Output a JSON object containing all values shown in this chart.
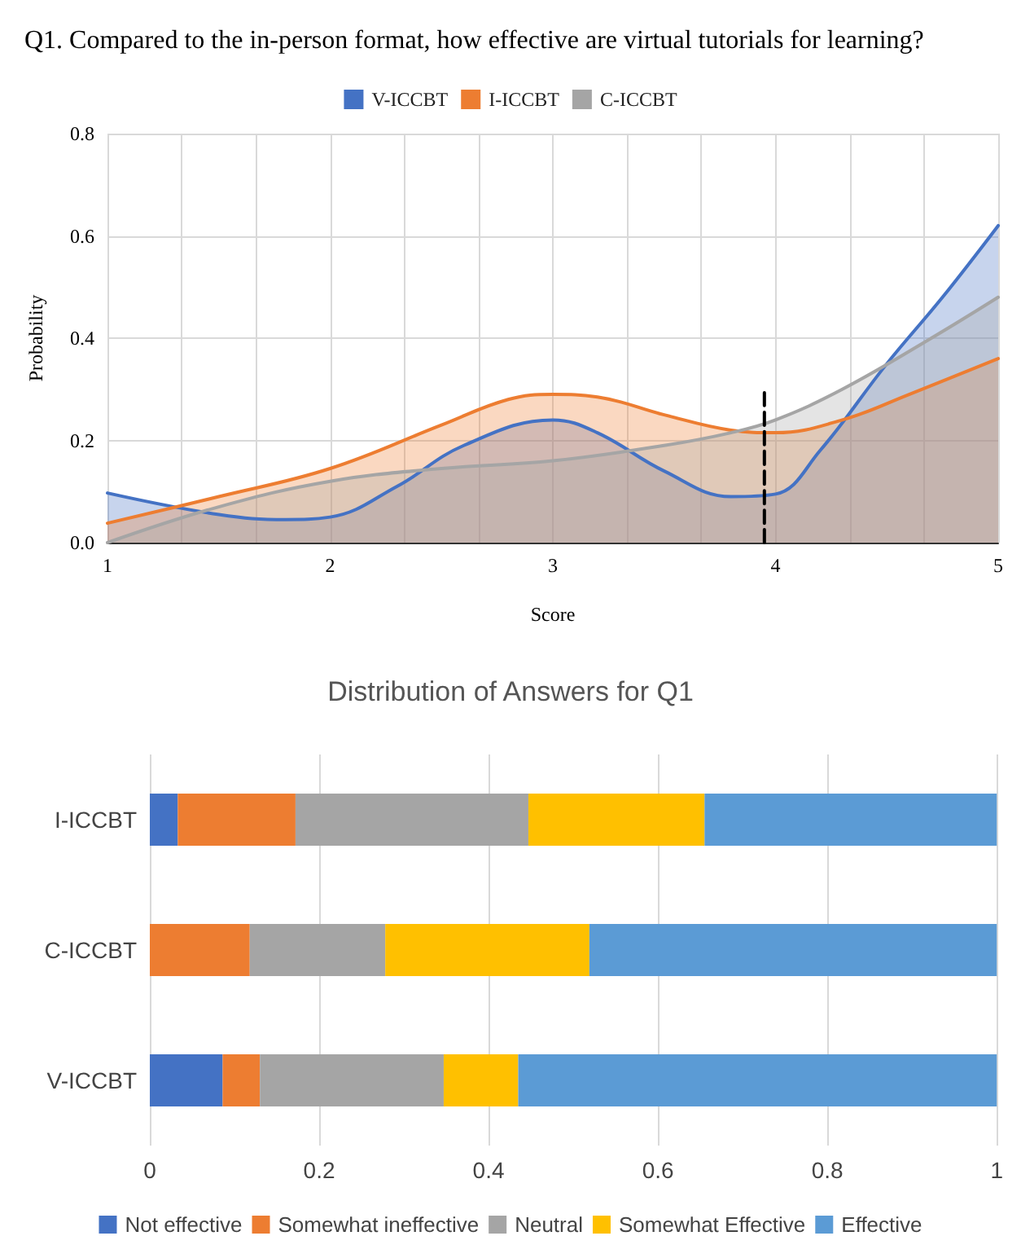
{
  "chart_data": [
    {
      "type": "area",
      "title": "Q1. Compared to the in-person format, how effective are virtual tutorials for learning?",
      "xlabel": "Score",
      "ylabel": "Probability",
      "legend": "top",
      "grid": true,
      "xlim": [
        1,
        5
      ],
      "ylim": [
        0,
        0.8
      ],
      "xticks": [
        1,
        {
          "value": 1.3333,
          "label": null
        },
        {
          "value": 1.6667,
          "label": null
        },
        2,
        {
          "value": 2.3333,
          "label": null
        },
        {
          "value": 2.6667,
          "label": null
        },
        3,
        {
          "value": 3.3333,
          "label": null
        },
        {
          "value": 3.6667,
          "label": null
        },
        4,
        {
          "value": 4.3333,
          "label": null
        },
        {
          "value": 4.6667,
          "label": null
        },
        5
      ],
      "yticks": [
        {
          "value": 0,
          "label": "0.0"
        },
        0.2,
        0.4,
        0.6,
        0.8
      ],
      "series": [
        {
          "name": "V-ICCBT",
          "color": "#4472c4",
          "x": [
            1,
            1.5,
            1.8,
            2,
            2.3,
            2.6,
            3,
            3.2,
            3.5,
            3.8,
            4,
            4.2,
            4.5,
            4.75,
            5
          ],
          "values": [
            0.097,
            0.055,
            0.045,
            0.05,
            0.11,
            0.19,
            0.24,
            0.215,
            0.14,
            0.09,
            0.095,
            0.18,
            0.35,
            0.48,
            0.62
          ]
        },
        {
          "name": "I-ICCBT",
          "color": "#ed7d31",
          "x": [
            1,
            1.5,
            2,
            2.5,
            2.8,
            3,
            3.2,
            3.5,
            3.8,
            4,
            4.3,
            4.6,
            5
          ],
          "values": [
            0.038,
            0.09,
            0.145,
            0.23,
            0.28,
            0.29,
            0.285,
            0.25,
            0.22,
            0.215,
            0.24,
            0.29,
            0.36
          ]
        },
        {
          "name": "C-ICCBT",
          "color": "#a5a5a5",
          "x": [
            1,
            1.5,
            2,
            2.5,
            3,
            3.5,
            3.8,
            4,
            4.3,
            4.7,
            5
          ],
          "values": [
            0,
            0.07,
            0.12,
            0.145,
            0.16,
            0.19,
            0.215,
            0.24,
            0.3,
            0.4,
            0.48
          ]
        },
        {
          "type": "line",
          "color": "#000000",
          "line_style": "dashed",
          "x": [
            3.95,
            3.95
          ],
          "values": [
            0,
            0.3
          ]
        }
      ]
    },
    {
      "type": "bar",
      "stacked": true,
      "orientation": "horizontal",
      "title": "Distribution of Answers for Q1",
      "legend": "bottom",
      "grid": "x",
      "xlim": [
        0,
        1
      ],
      "xticks": [
        0,
        0.2,
        0.4,
        0.6,
        0.8,
        1
      ],
      "categories": [
        "I-ICCBT",
        "C-ICCBT",
        "V-ICCBT"
      ],
      "series": [
        {
          "name": "Not effective",
          "color": "#4472c4",
          "values": [
            0.033,
            0,
            0.086
          ]
        },
        {
          "name": "Somewhat ineffective",
          "color": "#ed7d31",
          "values": [
            0.139,
            0.118,
            0.044
          ]
        },
        {
          "name": "Neutral",
          "color": "#a5a5a5",
          "values": [
            0.275,
            0.16,
            0.217
          ]
        },
        {
          "name": "Somewhat Effective",
          "color": "#ffc000",
          "values": [
            0.208,
            0.241,
            0.088
          ]
        },
        {
          "name": "Effective",
          "color": "#5b9bd5",
          "values": [
            0.345,
            0.481,
            0.565
          ]
        }
      ]
    }
  ]
}
